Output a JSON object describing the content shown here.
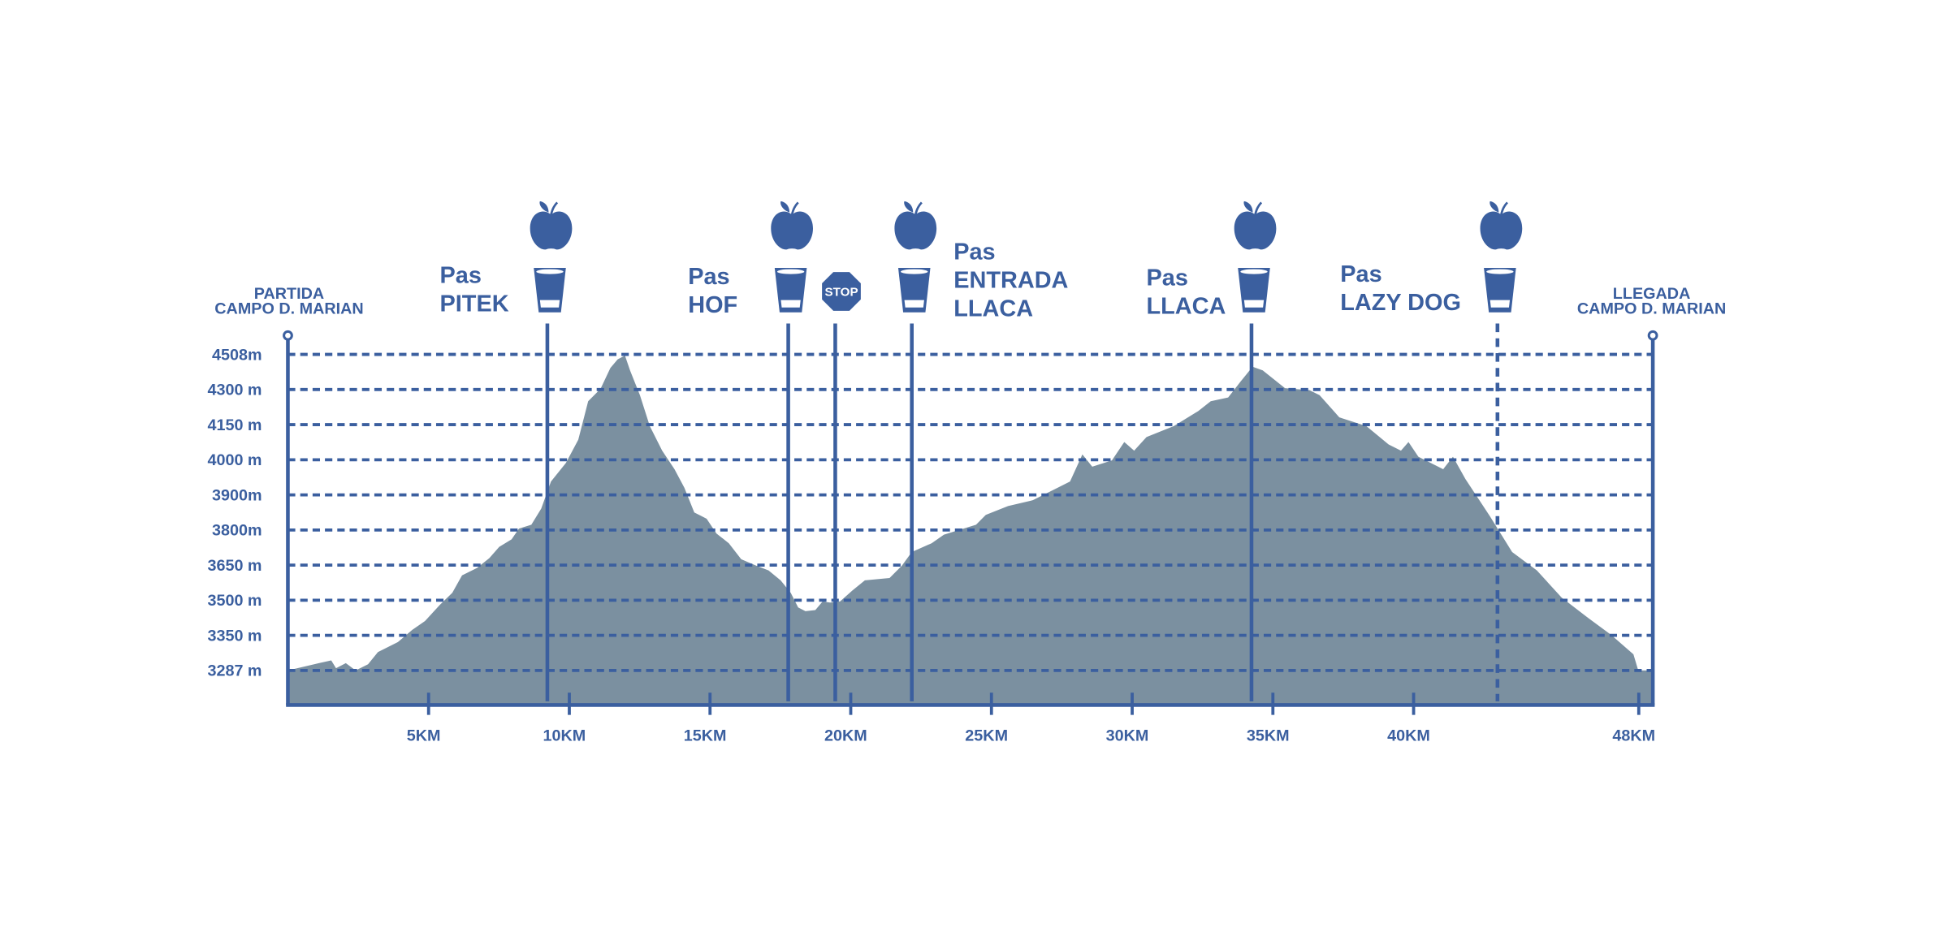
{
  "chart_data": {
    "type": "area",
    "color": "#7b90a0",
    "line_color": "#3b5f9f",
    "grid": true,
    "x": [
      0,
      1.1,
      1.54,
      1.71,
      2.06,
      2.41,
      2.85,
      3.2,
      3.91,
      4.43,
      4.87,
      5.4,
      5.84,
      6.19,
      6.72,
      7.16,
      7.51,
      7.95,
      8.21,
      8.65,
      9.0,
      9.35,
      9.88,
      10.32,
      10.67,
      11.11,
      11.46,
      11.72,
      11.98,
      12.16,
      12.51,
      12.86,
      13.3,
      13.74,
      14.09,
      14.44,
      14.88,
      15.23,
      15.67,
      16.11,
      16.64,
      17.08,
      17.51,
      17.87,
      18.13,
      18.39,
      18.74,
      19.0,
      19.27,
      19.62,
      20.06,
      20.5,
      21.38,
      21.82,
      22.17,
      22.87,
      23.31,
      24.45,
      24.8,
      25.59,
      26.47,
      27.35,
      27.79,
      28.23,
      28.58,
      29.28,
      29.72,
      30.07,
      30.51,
      31.48,
      32.35,
      32.79,
      33.41,
      33.85,
      34.28,
      34.64,
      35.43,
      36.3,
      36.66,
      37.36,
      38.32,
      39.11,
      39.55,
      39.82,
      40.17,
      41.05,
      41.4,
      41.84,
      42.71,
      43.5,
      44.38,
      45.26,
      46.14,
      47.02,
      47.81,
      47.98,
      48.5
    ],
    "values": [
      3287,
      3300,
      3305,
      3291,
      3300,
      3287,
      3298,
      3320,
      3338,
      3374,
      3411,
      3480,
      3532,
      3606,
      3638,
      3680,
      3728,
      3760,
      3804,
      3815,
      3861,
      3938,
      3991,
      4086,
      4250,
      4304,
      4428,
      4479,
      4501,
      4413,
      4276,
      4144,
      4039,
      3973,
      3920,
      3850,
      3832,
      3785,
      3743,
      3675,
      3648,
      3627,
      3585,
      3532,
      3469,
      3453,
      3458,
      3495,
      3490,
      3495,
      3542,
      3585,
      3595,
      3648,
      3706,
      3743,
      3780,
      3815,
      3843,
      3868,
      3885,
      3920,
      3938,
      4023,
      3980,
      3998,
      4076,
      4039,
      4097,
      4144,
      4208,
      4250,
      4266,
      4347,
      4435,
      4413,
      4308,
      4297,
      4276,
      4181,
      4144,
      4065,
      4039,
      4076,
      4013,
      3973,
      4013,
      3945,
      3839,
      3706,
      3627,
      3511,
      3430,
      3352,
      3316,
      3287,
      3287
    ],
    "xlim": [
      0,
      48.5
    ],
    "xticks": [
      {
        "value": 5,
        "label": "5KM"
      },
      {
        "value": 10,
        "label": "10KM"
      },
      {
        "value": 15,
        "label": "15KM"
      },
      {
        "value": 20,
        "label": "20KM"
      },
      {
        "value": 25,
        "label": "25KM"
      },
      {
        "value": 30,
        "label": "30KM"
      },
      {
        "value": 35,
        "label": "35KM"
      },
      {
        "value": 40,
        "label": "40KM"
      },
      {
        "value": 48,
        "label": "48KM"
      }
    ],
    "ylim": [
      3225,
      4620
    ],
    "yticks": [
      {
        "value": 3287,
        "label": "3287 m"
      },
      {
        "value": 3350,
        "label": "3350 m"
      },
      {
        "value": 3500,
        "label": "3500 m"
      },
      {
        "value": 3650,
        "label": "3650 m"
      },
      {
        "value": 3800,
        "label": "3800m"
      },
      {
        "value": 3900,
        "label": "3900m"
      },
      {
        "value": 4000,
        "label": "4000 m"
      },
      {
        "value": 4150,
        "label": "4150 m"
      },
      {
        "value": 4300,
        "label": "4300 m"
      },
      {
        "value": 4508,
        "label": "4508m"
      }
    ],
    "start": {
      "lines": [
        "PARTIDA",
        "CAMPO D. MARIAN"
      ]
    },
    "finish": {
      "lines": [
        "LLEGADA",
        "CAMPO D. MARIAN"
      ]
    },
    "stations": [
      {
        "km": 9.22,
        "lines": [
          "Pas",
          "PITEK"
        ],
        "icons": [
          "apple",
          "cup"
        ],
        "dashed": false
      },
      {
        "km": 17.78,
        "lines": [
          "Pas",
          "HOF"
        ],
        "icons": [
          "apple",
          "cup"
        ],
        "dashed": false
      },
      {
        "km": 19.45,
        "sign": "STOP",
        "dashed": false
      },
      {
        "km": 22.17,
        "lines": [
          "Pas",
          "ENTRADA",
          "LLACA"
        ],
        "icons": [
          "apple",
          "cup"
        ],
        "dashed": false
      },
      {
        "km": 34.24,
        "lines": [
          "Pas",
          "LLACA"
        ],
        "icons": [
          "apple",
          "cup"
        ],
        "dashed": false
      },
      {
        "km": 42.98,
        "lines": [
          "Pas",
          "LAZY DOG"
        ],
        "icons": [
          "apple",
          "cup"
        ],
        "dashed": true
      }
    ]
  }
}
